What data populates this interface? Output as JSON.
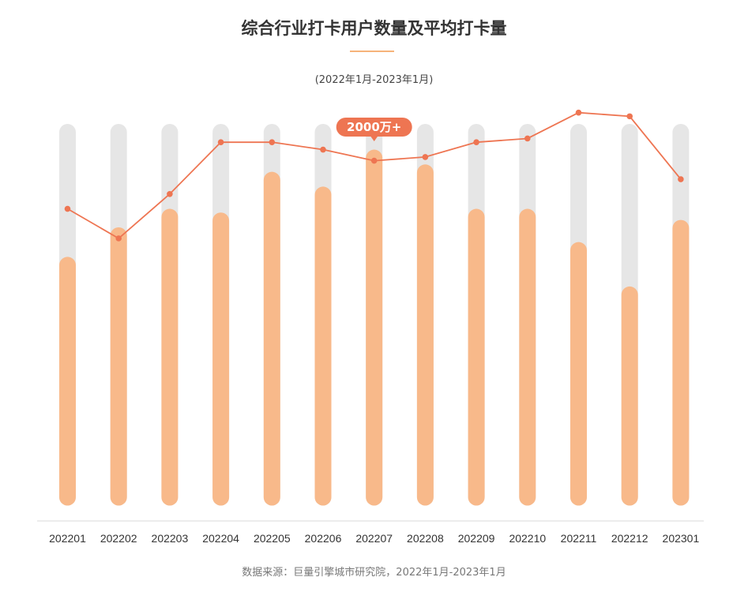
{
  "header": {
    "title": "综合行业打卡用户数量及平均打卡量",
    "subtitle": "(2022年1月-2023年1月)"
  },
  "footer": {
    "source": "数据来源：巨量引擎城市研究院，2022年1月-2023年1月"
  },
  "colors": {
    "bar_fill": "#f8b98a",
    "bar_track": "#e6e6e6",
    "line": "#ee7552",
    "callout": "#ee7552",
    "axis": "#d9d9d9"
  },
  "chart_data": {
    "type": "bar",
    "categories": [
      "202201",
      "202202",
      "202203",
      "202204",
      "202205",
      "202206",
      "202207",
      "202208",
      "202209",
      "202210",
      "202211",
      "202212",
      "202301"
    ],
    "series": [
      {
        "type": "bar",
        "values": [
          0.65,
          0.73,
          0.78,
          0.77,
          0.88,
          0.84,
          0.94,
          0.9,
          0.78,
          0.78,
          0.69,
          0.57,
          0.75
        ]
      },
      {
        "type": "line",
        "values": [
          0.78,
          0.7,
          0.82,
          0.96,
          0.96,
          0.94,
          0.91,
          0.92,
          0.96,
          0.97,
          1.04,
          1.03,
          0.86
        ]
      }
    ],
    "ylim": [
      0,
      1.05
    ],
    "annotations": [
      {
        "category": "202207",
        "text": "2000万+"
      }
    ],
    "legend": "none",
    "grid": false
  }
}
